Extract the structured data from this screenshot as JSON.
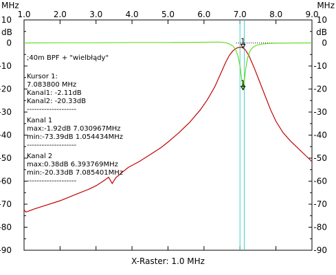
{
  "chart_data": {
    "type": "line",
    "x_unit": "MHz",
    "y_unit": "dB",
    "xlim": [
      1.0,
      9.0
    ],
    "ylim": [
      -90,
      10
    ],
    "x_ticks": [
      "1.0",
      "2.0",
      "3.0",
      "4.0",
      "5.0",
      "6.0",
      "7.0",
      "8.0",
      "9.0"
    ],
    "y_ticks": [
      "10",
      "0",
      "-10",
      "-20",
      "-30",
      "-40",
      "-50",
      "-60",
      "-70",
      "-80",
      "-90"
    ],
    "grid": false,
    "footer": "X-Raster: 1.0 MHz",
    "series": [
      {
        "color": "#c00000",
        "x": [
          1.0,
          1.054434,
          1.3,
          1.6,
          2.0,
          2.4,
          2.8,
          3.0,
          3.2,
          3.35,
          3.45,
          3.55,
          3.7,
          3.9,
          4.2,
          4.5,
          4.8,
          5.0,
          5.3,
          5.6,
          5.9,
          6.1,
          6.3,
          6.5,
          6.6,
          6.7,
          6.8,
          6.85,
          6.9,
          6.95,
          7.0,
          7.030967,
          7.0838,
          7.15,
          7.25,
          7.4,
          7.55,
          7.7,
          7.85,
          8.0,
          8.2,
          8.4,
          8.6,
          8.8,
          9.0
        ],
        "y": [
          -72.5,
          -73.39,
          -72.0,
          -70.5,
          -68.5,
          -66.0,
          -63.5,
          -62.0,
          -60.0,
          -58.3,
          -61.0,
          -58.5,
          -56.5,
          -54.0,
          -51.5,
          -48.5,
          -45.5,
          -43.0,
          -39.0,
          -34.5,
          -29.0,
          -24.5,
          -19.0,
          -12.0,
          -8.5,
          -5.5,
          -3.5,
          -2.8,
          -2.3,
          -2.0,
          -1.92,
          -1.92,
          -2.11,
          -3.0,
          -5.5,
          -11.0,
          -17.0,
          -23.0,
          -29.0,
          -34.0,
          -39.0,
          -42.5,
          -45.5,
          -48.5,
          -51.5
        ]
      },
      {
        "color": "#66dd22",
        "x": [
          1.0,
          2.0,
          3.0,
          4.0,
          5.0,
          6.0,
          6.393769,
          6.5,
          6.6,
          6.7,
          6.8,
          6.85,
          6.9,
          6.95,
          7.0,
          7.04,
          7.07,
          7.085401,
          7.1,
          7.13,
          7.17,
          7.22,
          7.28,
          7.35,
          7.45,
          7.6,
          7.8,
          8.0,
          8.5,
          9.0
        ],
        "y": [
          0.0,
          0.1,
          0.1,
          0.2,
          0.2,
          0.3,
          0.38,
          0.3,
          0.1,
          -0.4,
          -1.3,
          -2.2,
          -3.6,
          -6.0,
          -10.0,
          -14.5,
          -18.5,
          -20.33,
          -19.0,
          -15.0,
          -10.0,
          -6.0,
          -3.5,
          -2.0,
          -1.0,
          -0.5,
          -0.2,
          -0.1,
          0.0,
          0.0
        ]
      }
    ],
    "reference_line": {
      "y": 0,
      "from_x": 6.9,
      "to_x": 9.0,
      "style": "dotted"
    },
    "cursor_lines": [
      {
        "x": 7.0,
        "color": "#44cccc"
      },
      {
        "x": 7.12,
        "color": "#44cccc"
      }
    ],
    "markers": [
      {
        "label": "1",
        "x": 7.0838,
        "y": -2.11
      },
      {
        "label": "1",
        "x": 7.085401,
        "y": -20.33
      }
    ]
  },
  "axis": {
    "x_unit_label": "MHz",
    "y_unit_label": "dB"
  },
  "annotations": {
    "title_line": ";40m BPF + \"wielbłądy\"",
    "cursor_header": "Kursor 1:",
    "cursor_freq": "7.083800 MHz",
    "kanal1_at_cursor": "Kanal1: -2.11dB",
    "kanal2_at_cursor": "Kanal2: -20.33dB",
    "separator1": "--------------------",
    "kanal1_header": "Kanal 1",
    "kanal1_max": "max:-1.92dB 7.030967MHz",
    "kanal1_min": "min:-73.39dB 1.054434MHz",
    "separator2": "--------------------",
    "kanal2_header": "Kanal 2",
    "kanal2_max": "max:0.38dB 6.393769MHz",
    "kanal2_min": "min:-20.33dB 7.085401MHz",
    "separator3": "--------------------"
  }
}
